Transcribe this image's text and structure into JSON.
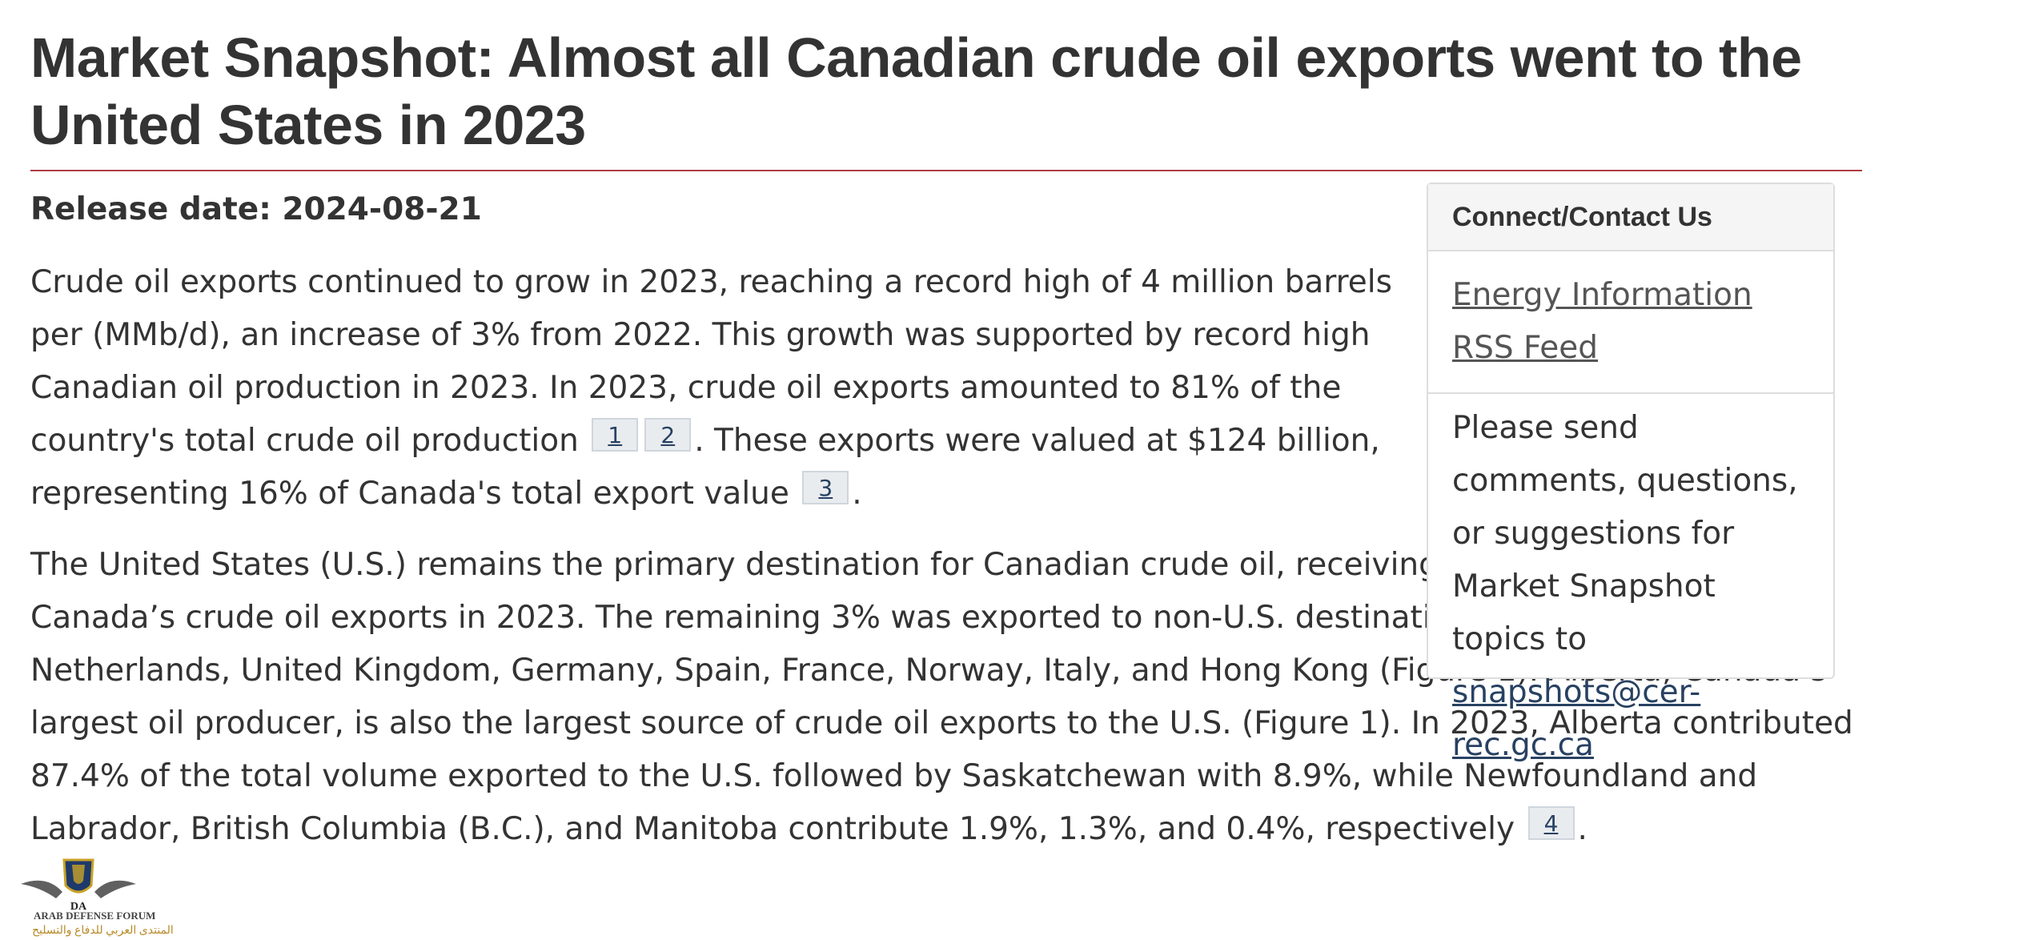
{
  "title": "Market Snapshot: Almost all Canadian crude oil exports went to the United States in 2023",
  "release_date": "Release date: 2024-08-21",
  "paragraph1": {
    "part1": "Crude oil exports continued to grow in 2023, reaching a record high of 4 million barrels per (MMb/d), an increase of 3% from 2022. This growth was supported by record high Canadian oil production in 2023. In 2023, crude oil exports amounted to 81% of the country's total crude oil production",
    "fn1": "1",
    "fn2": "2",
    "part2": ". These exports were valued at $124 billion, representing 16% of Canada's total export value",
    "fn3": "3",
    "part3": "."
  },
  "paragraph2": {
    "part1": "The United States (U.S.) remains the primary destination for Canadian crude oil, receiving approximately 97% of Canada’s crude oil exports in 2023. The remaining 3% was exported to non-U.S. destinations including the Netherlands, United Kingdom, Germany, Spain, France, Norway, Italy, and Hong Kong (Figure 1). Alberta, Canada’s largest oil producer, is also the largest source of crude oil exports to the U.S. (Figure 1). In 2023, Alberta contributed 87.4% of the total volume exported to the U.S. followed by Saskatchewan with 8.9%, while Newfoundland and Labrador, British Columbia (B.C.), and Manitoba contribute 1.9%, 1.3%, and 0.4%, respectively",
    "fn4": "4",
    "part2": "."
  },
  "aside": {
    "heading": "Connect/Contact Us",
    "links": [
      "Energy Information",
      "RSS Feed"
    ],
    "body": "Please send comments, questions, or suggestions for Market Snapshot topics to",
    "email": "snapshots@cer-rec.gc.ca"
  },
  "watermark": {
    "line1": "ARAB DEFENSE FORUM",
    "line2": "المنتدى العربي للدفاع والتسليح",
    "mark": "DA"
  },
  "colors": {
    "rule": "#af3c43",
    "link": "#284162",
    "text": "#333333"
  }
}
